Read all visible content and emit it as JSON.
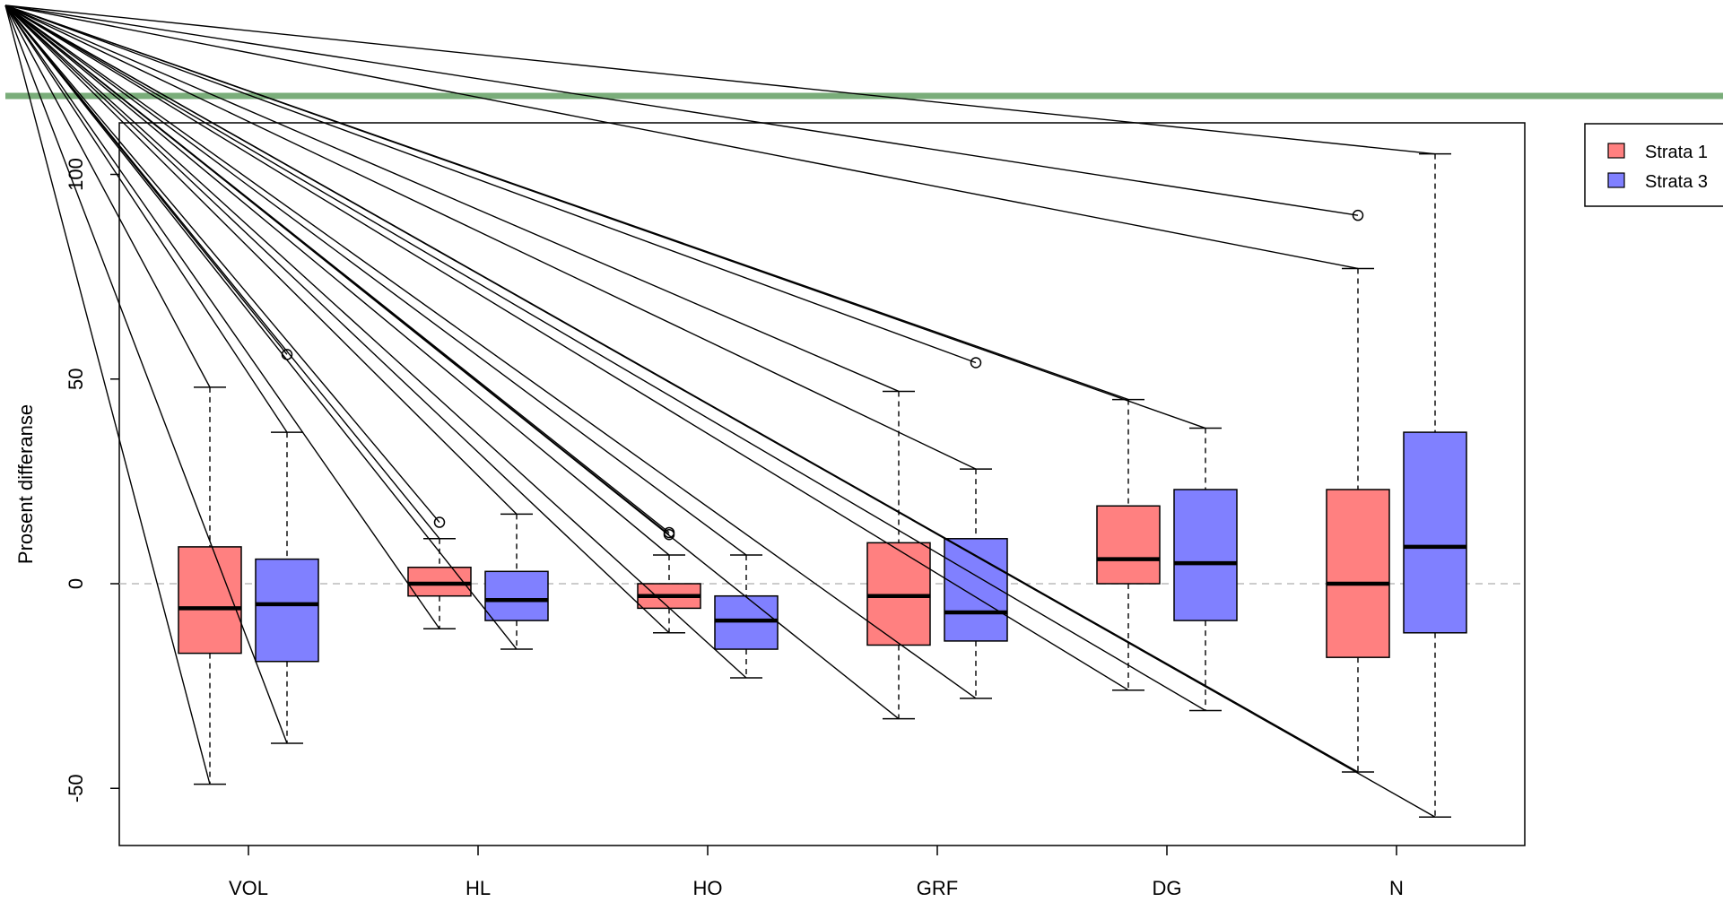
{
  "chart_data": {
    "type": "boxplot",
    "title": "",
    "xlabel": "",
    "ylabel": "Prosent differanse",
    "ylim": [
      -63,
      112
    ],
    "yticks": [
      -50,
      0,
      50,
      100
    ],
    "yticks_text": [
      "-50",
      "0",
      "50",
      "100"
    ],
    "categories": [
      "VOL",
      "HL",
      "HO",
      "GRF",
      "DG",
      "N"
    ],
    "reference_line": {
      "y": 0,
      "style": "dashed",
      "color": "#bbbbbb"
    },
    "legend": {
      "position": "top-right",
      "entries": [
        "Strata 1",
        "Strata 3"
      ]
    },
    "colors": {
      "Strata 1": "#ff8080",
      "Strata 3": "#8080ff",
      "top_band": "#7aad7a"
    },
    "series": [
      {
        "name": "Strata 1",
        "boxes": [
          {
            "category": "VOL",
            "whisker_low": -49,
            "q1": -17,
            "median": -6,
            "q3": 9,
            "whisker_high": 48,
            "outliers": []
          },
          {
            "category": "HL",
            "whisker_low": -11,
            "q1": -3,
            "median": 0,
            "q3": 4,
            "whisker_high": 11,
            "outliers": [
              15
            ]
          },
          {
            "category": "HO",
            "whisker_low": -12,
            "q1": -6,
            "median": -3,
            "q3": 0,
            "whisker_high": 7,
            "outliers": [
              12,
              12.5
            ]
          },
          {
            "category": "GRF",
            "whisker_low": -33,
            "q1": -15,
            "median": -3,
            "q3": 10,
            "whisker_high": 47,
            "outliers": []
          },
          {
            "category": "DG",
            "whisker_low": -26,
            "q1": 0,
            "median": 6,
            "q3": 19,
            "whisker_high": 45,
            "outliers": []
          },
          {
            "category": "N",
            "whisker_low": -46,
            "q1": -18,
            "median": 0,
            "q3": 23,
            "whisker_high": 77,
            "outliers": [
              90
            ]
          }
        ]
      },
      {
        "name": "Strata 3",
        "boxes": [
          {
            "category": "VOL",
            "whisker_low": -39,
            "q1": -19,
            "median": -5,
            "q3": 6,
            "whisker_high": 37,
            "outliers": [
              56
            ]
          },
          {
            "category": "HL",
            "whisker_low": -16,
            "q1": -9,
            "median": -4,
            "q3": 3,
            "whisker_high": 17,
            "outliers": []
          },
          {
            "category": "HO",
            "whisker_low": -23,
            "q1": -16,
            "median": -9,
            "q3": -3,
            "whisker_high": 7,
            "outliers": []
          },
          {
            "category": "GRF",
            "whisker_low": -28,
            "q1": -14,
            "median": -7,
            "q3": 11,
            "whisker_high": 28,
            "outliers": [
              54
            ]
          },
          {
            "category": "DG",
            "whisker_low": -31,
            "q1": -9,
            "median": 5,
            "q3": 23,
            "whisker_high": 38,
            "outliers": []
          },
          {
            "category": "N",
            "whisker_low": -57,
            "q1": -12,
            "median": 9,
            "q3": 37,
            "whisker_high": 105,
            "outliers": []
          }
        ]
      }
    ]
  }
}
